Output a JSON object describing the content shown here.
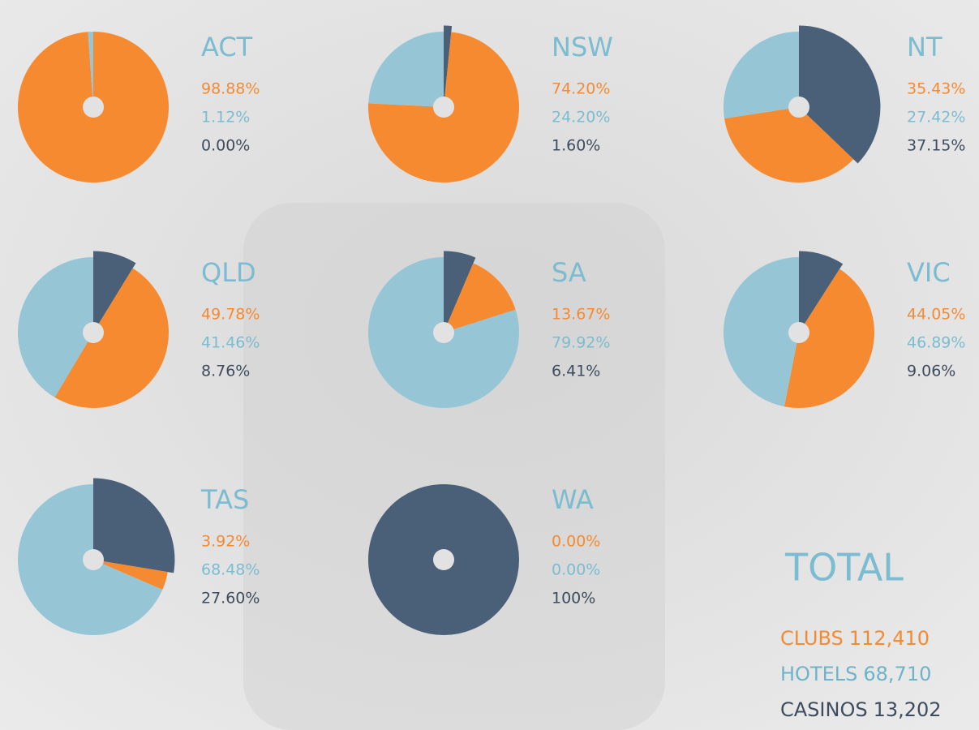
{
  "chart_data": [
    {
      "type": "pie",
      "title": "ACT",
      "values": [
        98.88,
        1.12,
        0.0
      ],
      "value_labels": [
        "98.88%",
        "1.12%",
        "0.00%"
      ],
      "colors": [
        "#f58a30",
        "#96c5d5",
        "#4a5f78"
      ]
    },
    {
      "type": "pie",
      "title": "NSW",
      "values": [
        74.2,
        24.2,
        1.6
      ],
      "value_labels": [
        "74.20%",
        "24.20%",
        "1.60%"
      ],
      "colors": [
        "#f58a30",
        "#96c5d5",
        "#4a5f78"
      ]
    },
    {
      "type": "pie",
      "title": "NT",
      "values": [
        35.43,
        27.42,
        37.15
      ],
      "value_labels": [
        "35.43%",
        "27.42%",
        "37.15%"
      ],
      "colors": [
        "#f58a30",
        "#96c5d5",
        "#4a5f78"
      ]
    },
    {
      "type": "pie",
      "title": "QLD",
      "values": [
        49.78,
        41.46,
        8.76
      ],
      "value_labels": [
        "49.78%",
        "41.46%",
        "8.76%"
      ],
      "colors": [
        "#f58a30",
        "#96c5d5",
        "#4a5f78"
      ]
    },
    {
      "type": "pie",
      "title": "SA",
      "values": [
        13.67,
        79.92,
        6.41
      ],
      "value_labels": [
        "13.67%",
        "79.92%",
        "6.41%"
      ],
      "colors": [
        "#f58a30",
        "#96c5d5",
        "#4a5f78"
      ]
    },
    {
      "type": "pie",
      "title": "VIC",
      "values": [
        44.05,
        46.89,
        9.06
      ],
      "value_labels": [
        "44.05%",
        "46.89%",
        "9.06%"
      ],
      "colors": [
        "#f58a30",
        "#96c5d5",
        "#4a5f78"
      ]
    },
    {
      "type": "pie",
      "title": "TAS",
      "values": [
        3.92,
        68.48,
        27.6
      ],
      "value_labels": [
        "3.92%",
        "68.48%",
        "27.60%"
      ],
      "colors": [
        "#f58a30",
        "#96c5d5",
        "#4a5f78"
      ]
    },
    {
      "type": "pie",
      "title": "WA",
      "values": [
        0.0,
        0.0,
        100
      ],
      "value_labels": [
        "0.00%",
        "0.00%",
        "100%"
      ],
      "colors": [
        "#f58a30",
        "#96c5d5",
        "#4a5f78"
      ]
    }
  ],
  "total": {
    "title": "TOTAL",
    "categories": [
      "CLUBS",
      "HOTELS",
      "CASINOS"
    ],
    "values": [
      112410,
      68710,
      13202
    ],
    "value_labels": [
      "112,410",
      "68,710",
      "13,202"
    ],
    "colors": [
      "#f58a30",
      "#6fb3c9",
      "#3e4c5e"
    ]
  }
}
